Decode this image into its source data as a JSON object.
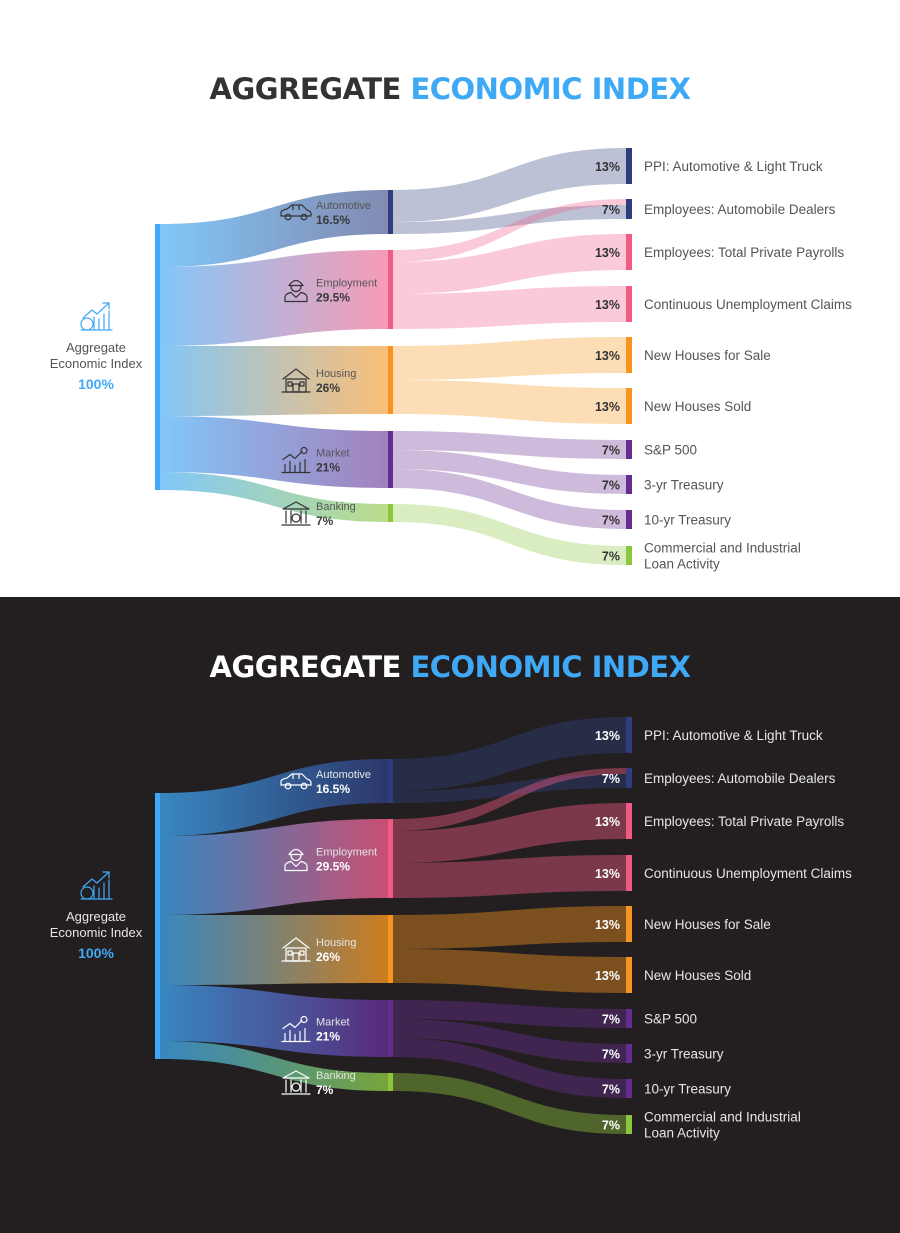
{
  "title": {
    "part1": "AGGREGATE",
    "part2": "ECONOMIC INDEX"
  },
  "colors": {
    "accent": "#3fa9f5",
    "automotive": "#2e3d7e",
    "employment": "#f25a86",
    "housing": "#f7941d",
    "market": "#662d91",
    "banking": "#8cc63f",
    "dark_background": "#231f20"
  },
  "source": {
    "label_line1": "Aggregate",
    "label_line2": "Economic Index",
    "value": "100%",
    "icon": "chart-money-icon"
  },
  "chart_data": {
    "type": "sankey",
    "source": "Aggregate Economic Index",
    "source_value": "100%",
    "categories": [
      {
        "name": "Automotive",
        "value": "16.5%",
        "icon": "car-icon",
        "color": "automotive"
      },
      {
        "name": "Employment",
        "value": "29.5%",
        "icon": "worker-icon",
        "color": "employment"
      },
      {
        "name": "Housing",
        "value": "26%",
        "icon": "house-icon",
        "color": "housing"
      },
      {
        "name": "Market",
        "value": "21%",
        "icon": "stock-chart-icon",
        "color": "market"
      },
      {
        "name": "Banking",
        "value": "7%",
        "icon": "bank-icon",
        "color": "banking"
      }
    ],
    "indicators": [
      {
        "line1": "PPI: Automotive & Light Truck",
        "line2": "",
        "value": "13%",
        "color": "automotive"
      },
      {
        "line1": "Employees: Automobile Dealers",
        "line2": "",
        "value": "7%",
        "color": "automotive"
      },
      {
        "line1": "Employees: Total Private Payrolls",
        "line2": "",
        "value": "13%",
        "color": "employment"
      },
      {
        "line1": "Continuous Unemployment Claims",
        "line2": "",
        "value": "13%",
        "color": "employment"
      },
      {
        "line1": "New Houses for Sale",
        "line2": "",
        "value": "13%",
        "color": "housing"
      },
      {
        "line1": "New Houses Sold",
        "line2": "",
        "value": "13%",
        "color": "housing"
      },
      {
        "line1": "S&P 500",
        "line2": "",
        "value": "7%",
        "color": "market"
      },
      {
        "line1": "3-yr Treasury",
        "line2": "",
        "value": "7%",
        "color": "market"
      },
      {
        "line1": "10-yr Treasury",
        "line2": "",
        "value": "7%",
        "color": "market"
      },
      {
        "line1": "Commercial and Industrial",
        "line2": "Loan Activity",
        "value": "7%",
        "color": "banking"
      }
    ],
    "flows": [
      {
        "from": "Automotive",
        "to": "PPI: Automotive & Light Truck"
      },
      {
        "from": "Automotive",
        "to": "Employees: Automobile Dealers"
      },
      {
        "from": "Employment",
        "to": "Employees: Automobile Dealers"
      },
      {
        "from": "Employment",
        "to": "Employees: Total Private Payrolls"
      },
      {
        "from": "Employment",
        "to": "Continuous Unemployment Claims"
      },
      {
        "from": "Housing",
        "to": "New Houses for Sale"
      },
      {
        "from": "Housing",
        "to": "New Houses Sold"
      },
      {
        "from": "Market",
        "to": "S&P 500"
      },
      {
        "from": "Market",
        "to": "3-yr Treasury"
      },
      {
        "from": "Market",
        "to": "10-yr Treasury"
      },
      {
        "from": "Banking",
        "to": "Commercial and Industrial Loan Activity"
      }
    ]
  }
}
